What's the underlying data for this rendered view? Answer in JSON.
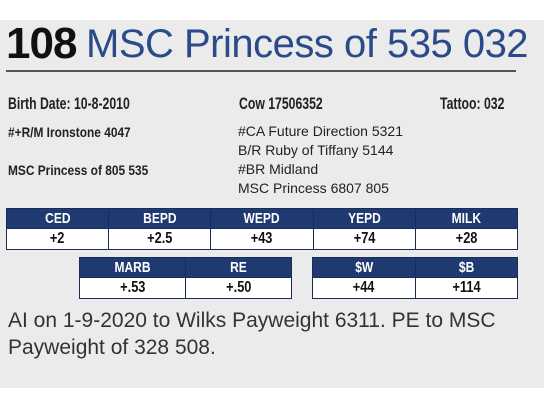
{
  "lot": {
    "number": "108",
    "name": "MSC Princess of 535 032"
  },
  "info": {
    "birth_date": "Birth Date: 10-8-2010",
    "cow_id": "Cow 17506352",
    "tattoo": "Tattoo: 032"
  },
  "sire_side": {
    "sire": "#+R/M Ironstone 4047",
    "dam": "MSC Princess of 805 535"
  },
  "pedigree": [
    "#CA Future Direction 5321",
    "B/R Ruby of Tiffany 5144",
    "#BR Midland",
    "MSC Princess 6807 805"
  ],
  "epd_row1": {
    "headers": [
      "CED",
      "BEPD",
      "WEPD",
      "YEPD",
      "MILK"
    ],
    "values": [
      "+2",
      "+2.5",
      "+43",
      "+74",
      "+28"
    ]
  },
  "epd_row2": {
    "headers": [
      "MARB",
      "RE",
      "$W",
      "$B"
    ],
    "values": [
      "+.53",
      "+.50",
      "+44",
      "+114"
    ]
  },
  "note": "AI on 1-9-2020 to Wilks Payweight 6311. PE to MSC Payweight of 328 508."
}
